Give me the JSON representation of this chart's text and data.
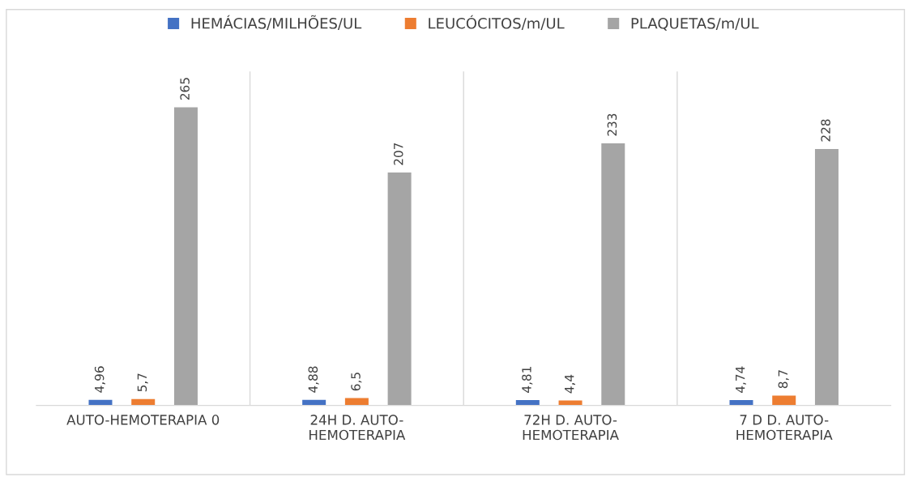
{
  "chart_data": {
    "type": "bar",
    "categories": [
      "AUTO-HEMOTERAPIA 0",
      "24H D. AUTO-\nHEMOTERAPIA",
      "72H D. AUTO-\nHEMOTERAPIA",
      "7 D D. AUTO-\nHEMOTERAPIA"
    ],
    "series": [
      {
        "name": "HEMÁCIAS/MILHÕES/UL",
        "color": "#4472c4",
        "values": [
          4.96,
          4.88,
          4.81,
          4.74
        ],
        "value_labels": [
          "4,96",
          "4,88",
          "4,81",
          "4,74"
        ]
      },
      {
        "name": "LEUCÓCITOS/m/UL",
        "color": "#ed7d31",
        "values": [
          5.7,
          6.5,
          4.4,
          8.7
        ],
        "value_labels": [
          "5,7",
          "6,5",
          "4,4",
          "8,7"
        ]
      },
      {
        "name": "PLAQUETAS/m/UL",
        "color": "#a5a5a5",
        "values": [
          265,
          207,
          233,
          228
        ],
        "value_labels": [
          "265",
          "207",
          "233",
          "228"
        ]
      }
    ],
    "legend": "top"
  }
}
